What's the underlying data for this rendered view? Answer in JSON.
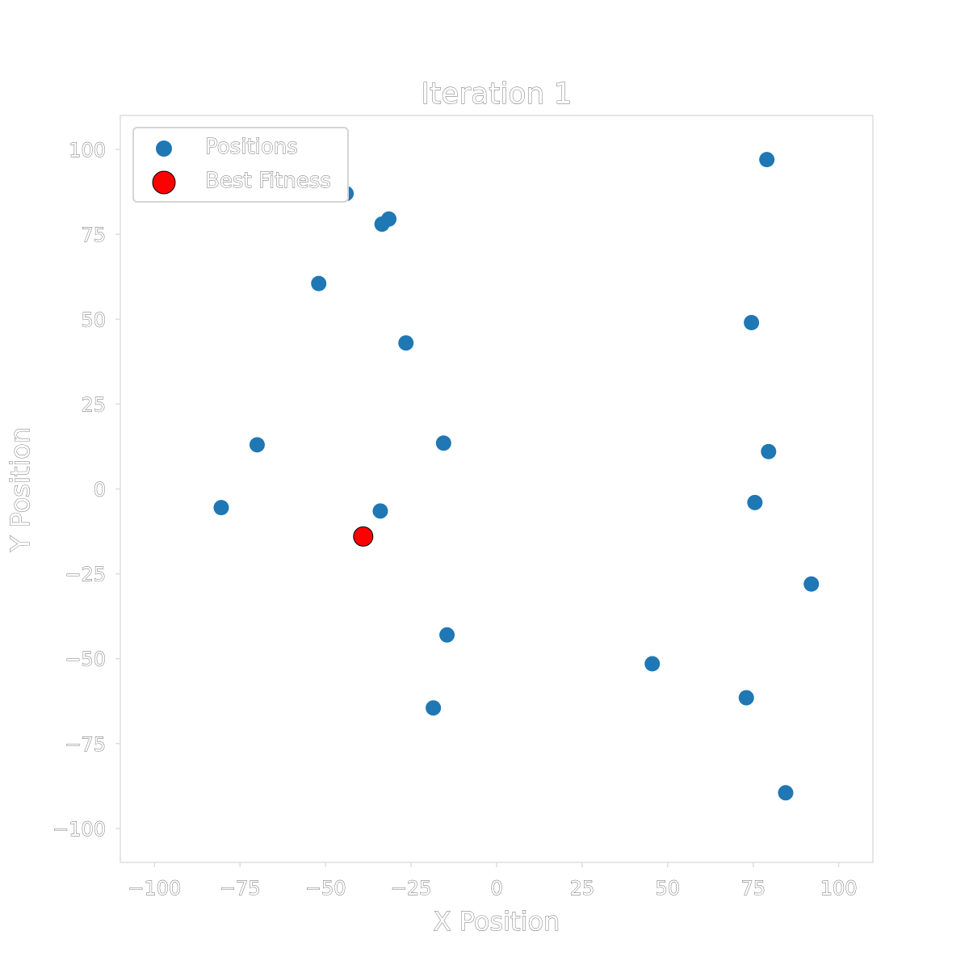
{
  "chart_data": {
    "type": "scatter",
    "title": "Iteration 1",
    "xlabel": "X Position",
    "ylabel": "Y Position",
    "xlim": [
      -110,
      110
    ],
    "ylim": [
      -110,
      110
    ],
    "xticks": [
      -100,
      -75,
      -50,
      -25,
      0,
      25,
      50,
      75,
      100
    ],
    "yticks": [
      100,
      75,
      50,
      25,
      0,
      -25,
      -50,
      -75,
      -100
    ],
    "grid": false,
    "legend_position": "top-left",
    "series": [
      {
        "name": "Positions",
        "color": "#1f77b4",
        "points": [
          {
            "x": 79,
            "y": 97
          },
          {
            "x": -44,
            "y": 87
          },
          {
            "x": -31.5,
            "y": 79.5
          },
          {
            "x": -33.5,
            "y": 78
          },
          {
            "x": -52,
            "y": 60.5
          },
          {
            "x": 74.5,
            "y": 49
          },
          {
            "x": -26.5,
            "y": 43
          },
          {
            "x": -70,
            "y": 13
          },
          {
            "x": -15.5,
            "y": 13.5
          },
          {
            "x": 79.5,
            "y": 11
          },
          {
            "x": -80.5,
            "y": -5.5
          },
          {
            "x": -34,
            "y": -6.5
          },
          {
            "x": 75.5,
            "y": -4
          },
          {
            "x": 92,
            "y": -28
          },
          {
            "x": -14.5,
            "y": -43
          },
          {
            "x": 45.5,
            "y": -51.5
          },
          {
            "x": -18.5,
            "y": -64.5
          },
          {
            "x": 73,
            "y": -61.5
          },
          {
            "x": 84.5,
            "y": -89.5
          }
        ]
      },
      {
        "name": "Best Fitness",
        "color": "#ff0000",
        "points": [
          {
            "x": -39,
            "y": -14
          }
        ]
      }
    ]
  }
}
